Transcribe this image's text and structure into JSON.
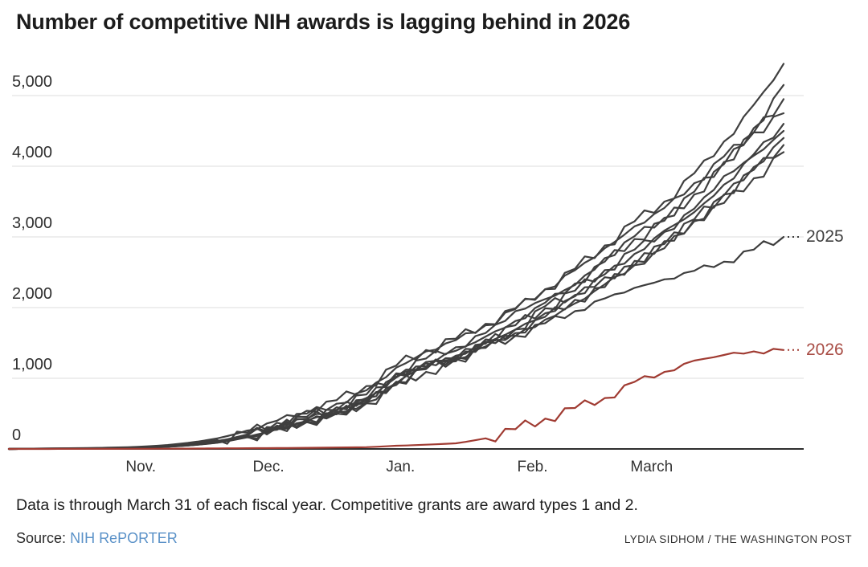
{
  "title": "Number of competitive NIH awards is lagging behind in 2026",
  "footnote": "Data is through March 31 of each fiscal year. Competitive grants are award types 1 and 2.",
  "source": {
    "label": "Source:",
    "link": "NIH RePORTER"
  },
  "credit": "LYDIA SIDHOM / THE WASHINGTON POST",
  "colors": {
    "background": "#ffffff",
    "prior_year_line": "#3f3f3f",
    "line_2025": "#3d3d3d",
    "line_2026": "#a03b32",
    "label_2025": "#404040",
    "label_2026": "#a84c44",
    "grid": "#dedede",
    "zero_axis": "#2e2e2e",
    "source_link": "#5b92c8",
    "text": "#1f1f1f"
  },
  "chart_data": {
    "type": "line",
    "title": "Number of competitive NIH awards is lagging behind in 2026",
    "xlabel": "",
    "ylabel": "",
    "x_axis": {
      "unit": "days since Oct. 1 (fiscal year start), through March 31",
      "range_days": [
        0,
        182
      ],
      "tick_labels": [
        "Nov.",
        "Dec.",
        "Jan.",
        "Feb.",
        "March"
      ],
      "tick_days": [
        31,
        61,
        92,
        123,
        151
      ]
    },
    "y_axis": {
      "tick_labels": [
        "0",
        "1,000",
        "2,000",
        "3,000",
        "4,000",
        "5,000"
      ],
      "tick_values": [
        0,
        1000,
        2000,
        3000,
        4000,
        5000
      ],
      "range": [
        0,
        5500
      ],
      "grid": "horizontal gridlines, darker zero baseline"
    },
    "legend": "line-end labels at right edge with dotted leaders",
    "series_note": "Nine unlabeled dark-gray lines are prior fiscal years; 2025 is dark gray and labeled; 2026 is red and labeled.",
    "sample_days": [
      0,
      7,
      14,
      21,
      28,
      35,
      42,
      49,
      56,
      63,
      70,
      77,
      84,
      91,
      98,
      105,
      112,
      119,
      126,
      133,
      140,
      147,
      154,
      161,
      168,
      175,
      182
    ],
    "series": [
      {
        "name": "",
        "role": "prior-year",
        "end_label": "",
        "values": [
          0,
          5,
          8,
          12,
          18,
          35,
          70,
          125,
          230,
          370,
          500,
          640,
          830,
          1150,
          1380,
          1540,
          1750,
          1980,
          2260,
          2550,
          2880,
          3220,
          3500,
          3900,
          4350,
          4870,
          5450
        ]
      },
      {
        "name": "",
        "role": "prior-year",
        "end_label": "",
        "values": [
          0,
          3,
          5,
          9,
          14,
          28,
          55,
          100,
          185,
          300,
          420,
          550,
          720,
          1020,
          1230,
          1390,
          1590,
          1810,
          2070,
          2340,
          2650,
          2970,
          3230,
          3600,
          4030,
          4540,
          5150
        ]
      },
      {
        "name": "",
        "role": "prior-year",
        "end_label": "",
        "values": [
          0,
          4,
          7,
          11,
          16,
          32,
          62,
          112,
          205,
          330,
          455,
          590,
          770,
          1070,
          1280,
          1440,
          1640,
          1950,
          2120,
          2320,
          2700,
          3010,
          3270,
          3640,
          4060,
          4480,
          4950
        ]
      },
      {
        "name": "",
        "role": "prior-year",
        "end_label": "",
        "values": [
          0,
          6,
          10,
          15,
          25,
          45,
          85,
          150,
          260,
          400,
          540,
          690,
          890,
          1180,
          1400,
          1560,
          1770,
          1990,
          2260,
          2530,
          2840,
          3150,
          3410,
          3760,
          4140,
          4480,
          4750
        ]
      },
      {
        "name": "",
        "role": "prior-year",
        "end_label": "",
        "values": [
          0,
          3,
          5,
          8,
          13,
          26,
          52,
          95,
          175,
          285,
          400,
          520,
          680,
          950,
          1150,
          1300,
          1490,
          1690,
          2020,
          2180,
          2470,
          2760,
          3090,
          3350,
          3740,
          4170,
          4600
        ]
      },
      {
        "name": "",
        "role": "prior-year",
        "end_label": "",
        "values": [
          0,
          4,
          6,
          10,
          15,
          29,
          57,
          103,
          190,
          310,
          430,
          555,
          720,
          1010,
          1210,
          1280,
          1550,
          1750,
          1990,
          2240,
          2530,
          2820,
          3070,
          3400,
          3860,
          4150,
          4500
        ]
      },
      {
        "name": "",
        "role": "prior-year",
        "end_label": "",
        "values": [
          0,
          3,
          5,
          8,
          12,
          25,
          50,
          92,
          170,
          280,
          390,
          505,
          660,
          930,
          1230,
          1270,
          1450,
          1640,
          1870,
          2110,
          2290,
          2660,
          2900,
          3220,
          3590,
          3990,
          4400
        ]
      },
      {
        "name": "",
        "role": "prior-year",
        "end_label": "",
        "values": [
          0,
          4,
          7,
          10,
          15,
          28,
          55,
          100,
          185,
          300,
          415,
          535,
          700,
          1060,
          1170,
          1320,
          1500,
          1690,
          1920,
          2160,
          2430,
          2600,
          2940,
          3250,
          3600,
          3950,
          4300
        ]
      },
      {
        "name": "",
        "role": "prior-year",
        "end_label": "",
        "values": [
          0,
          3,
          5,
          8,
          12,
          24,
          48,
          88,
          165,
          270,
          380,
          490,
          645,
          905,
          1090,
          1240,
          1520,
          1600,
          1830,
          2060,
          2330,
          2600,
          2840,
          3240,
          3480,
          3830,
          4200
        ]
      },
      {
        "name": "2025",
        "role": "labeled-2025",
        "end_label": "2025",
        "values": [
          0,
          3,
          5,
          8,
          12,
          25,
          50,
          90,
          170,
          280,
          390,
          500,
          650,
          950,
          1130,
          1270,
          1430,
          1600,
          1780,
          1950,
          2130,
          2280,
          2400,
          2520,
          2650,
          2820,
          3000
        ]
      },
      {
        "name": "2026",
        "role": "labeled-2026",
        "end_label": "2026",
        "values": [
          0,
          0,
          1,
          1,
          2,
          3,
          5,
          8,
          10,
          13,
          16,
          20,
          25,
          45,
          60,
          80,
          150,
          280,
          430,
          580,
          720,
          950,
          1090,
          1250,
          1330,
          1380,
          1400
        ]
      }
    ]
  }
}
